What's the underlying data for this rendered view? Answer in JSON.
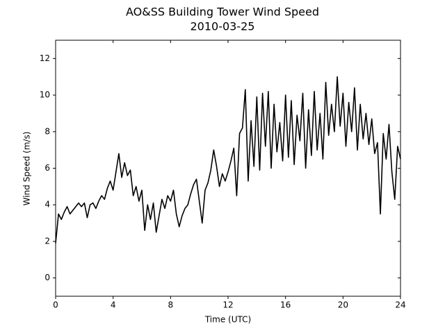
{
  "chart_data": {
    "type": "line",
    "title": "AO&SS Building Tower Wind Speed",
    "subtitle": "2010-03-25",
    "x_label": "Time (UTC)",
    "y_label": "Wind Speed (m/s)",
    "color": "#000000",
    "xlim": [
      0,
      24
    ],
    "xticks": [
      0,
      4,
      8,
      12,
      16,
      20,
      24
    ],
    "ylim": [
      -1,
      13
    ],
    "yticks": [
      0,
      2,
      4,
      6,
      8,
      10,
      12
    ],
    "grid": false,
    "x": [
      0,
      0.2,
      0.4,
      0.6,
      0.8,
      1,
      1.2,
      1.4,
      1.6,
      1.8,
      2,
      2.2,
      2.4,
      2.6,
      2.8,
      3,
      3.2,
      3.4,
      3.6,
      3.8,
      4,
      4.2,
      4.4,
      4.6,
      4.8,
      5,
      5.2,
      5.4,
      5.6,
      5.8,
      6,
      6.2,
      6.4,
      6.6,
      6.8,
      7,
      7.2,
      7.4,
      7.6,
      7.8,
      8,
      8.2,
      8.4,
      8.6,
      8.8,
      9,
      9.2,
      9.4,
      9.6,
      9.8,
      10,
      10.2,
      10.4,
      10.6,
      10.8,
      11,
      11.2,
      11.4,
      11.6,
      11.8,
      12,
      12.2,
      12.4,
      12.6,
      12.8,
      13,
      13.2,
      13.4,
      13.6,
      13.8,
      14,
      14.2,
      14.4,
      14.6,
      14.8,
      15,
      15.2,
      15.4,
      15.6,
      15.8,
      16,
      16.2,
      16.4,
      16.6,
      16.8,
      17,
      17.2,
      17.4,
      17.6,
      17.8,
      18,
      18.2,
      18.4,
      18.6,
      18.8,
      19,
      19.2,
      19.4,
      19.6,
      19.8,
      20,
      20.2,
      20.4,
      20.6,
      20.8,
      21,
      21.2,
      21.4,
      21.6,
      21.8,
      22,
      22.2,
      22.4,
      22.6,
      22.8,
      23,
      23.2,
      23.4,
      23.6,
      23.8,
      24
    ],
    "values": [
      1.9,
      3.5,
      3.2,
      3.6,
      3.9,
      3.5,
      3.7,
      3.9,
      4.1,
      3.9,
      4.1,
      3.3,
      4.0,
      4.1,
      3.8,
      4.2,
      4.5,
      4.3,
      4.9,
      5.3,
      4.8,
      5.8,
      6.8,
      5.5,
      6.3,
      5.6,
      5.9,
      4.5,
      5.0,
      4.2,
      4.8,
      2.6,
      4.0,
      3.2,
      4.1,
      2.5,
      3.4,
      4.3,
      3.8,
      4.5,
      4.2,
      4.8,
      3.5,
      2.8,
      3.4,
      3.8,
      4.0,
      4.6,
      5.1,
      5.4,
      4.2,
      3.0,
      4.8,
      5.2,
      5.9,
      7.0,
      6.1,
      5.0,
      5.7,
      5.3,
      5.8,
      6.4,
      7.1,
      4.5,
      7.9,
      8.2,
      10.3,
      5.3,
      8.6,
      6.1,
      9.9,
      5.9,
      10.1,
      7.2,
      10.2,
      6.0,
      9.5,
      6.9,
      8.5,
      6.4,
      10.0,
      6.6,
      9.7,
      6.2,
      8.9,
      7.5,
      10.1,
      6.0,
      9.2,
      6.7,
      10.2,
      7.0,
      9.0,
      6.5,
      10.7,
      7.8,
      9.5,
      8.0,
      11.0,
      8.3,
      10.1,
      7.2,
      9.6,
      8.0,
      10.4,
      7.0,
      9.5,
      7.6,
      9.0,
      7.3,
      8.7,
      6.8,
      7.4,
      3.5,
      7.9,
      6.5,
      8.4,
      5.8,
      4.3,
      7.2,
      6.5
    ]
  }
}
